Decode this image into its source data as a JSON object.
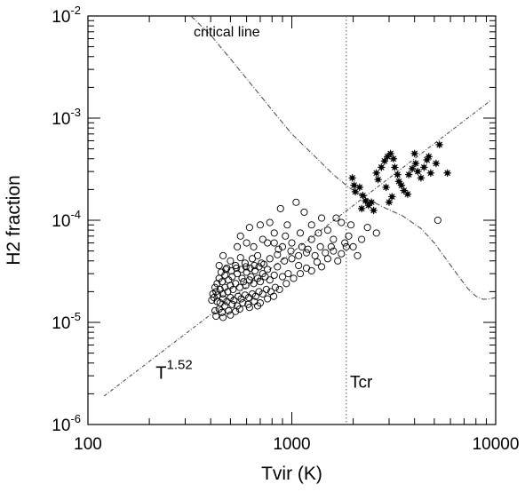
{
  "chart_data": {
    "type": "scatter",
    "x_scale": "log",
    "y_scale": "log",
    "xlabel": "Tvir (K)",
    "ylabel": "H2 fraction",
    "xlim": [
      100,
      10000
    ],
    "ylim": [
      1e-06,
      0.01
    ],
    "x_ticks": [
      {
        "value": 100,
        "label": "100"
      },
      {
        "value": 1000,
        "label": "1000"
      },
      {
        "value": 10000,
        "label": "10000"
      }
    ],
    "y_ticks": [
      {
        "value": 1e-06,
        "base": "10",
        "exp": "-6"
      },
      {
        "value": 1e-05,
        "base": "10",
        "exp": "-5"
      },
      {
        "value": 0.0001,
        "base": "10",
        "exp": "-4"
      },
      {
        "value": 0.001,
        "base": "10",
        "exp": "-3"
      },
      {
        "value": 0.01,
        "base": "10",
        "exp": "-2"
      }
    ],
    "grid": false,
    "annotations": {
      "critical_line": "critical line",
      "power_law_base": "T",
      "power_law_exp": "1.52",
      "tcr": "Tcr"
    },
    "vertical_line": {
      "x": 1850
    },
    "power_law_line": {
      "x": [
        120,
        9500
      ],
      "y": [
        1.9e-06,
        0.0015
      ]
    },
    "critical_curve": {
      "x": [
        320,
        400,
        500,
        650,
        800,
        1000,
        1300,
        1600,
        1900,
        2300,
        2800,
        3500,
        4300,
        5000,
        5800,
        6600,
        7300,
        8000,
        8700,
        9300,
        10000
      ],
      "y": [
        0.01,
        0.0065,
        0.0038,
        0.002,
        0.0012,
        0.0007,
        0.00042,
        0.00028,
        0.00021,
        0.000165,
        0.000135,
        0.00011,
        8.3e-05,
        6e-05,
        4e-05,
        2.8e-05,
        2.15e-05,
        1.8e-05,
        1.68e-05,
        1.7e-05,
        1.75e-05
      ]
    },
    "series": [
      {
        "marker": "open-circle",
        "points": [
          [
            880,
            0.00013
          ],
          [
            780,
            9.5e-05
          ],
          [
            1050,
            0.00015
          ],
          [
            1150,
            0.00012
          ],
          [
            1400,
            0.000105
          ],
          [
            1650,
            0.000105
          ],
          [
            1750,
            9.5e-05
          ],
          [
            1500,
            8e-05
          ],
          [
            1950,
            9e-05
          ],
          [
            2350,
            8.5e-05
          ],
          [
            2600,
            7.5e-05
          ],
          [
            5200,
            0.0001
          ],
          [
            1250,
            9e-05
          ],
          [
            950,
            9e-05
          ],
          [
            700,
            9e-05
          ],
          [
            620,
            8.5e-05
          ],
          [
            560,
            7e-05
          ],
          [
            540,
            5.5e-05
          ],
          [
            600,
            6e-05
          ],
          [
            650,
            5.5e-05
          ],
          [
            720,
            6.5e-05
          ],
          [
            820,
            6e-05
          ],
          [
            900,
            5.5e-05
          ],
          [
            1000,
            6e-05
          ],
          [
            1120,
            5.5e-05
          ],
          [
            1250,
            6.5e-05
          ],
          [
            1380,
            5.5e-05
          ],
          [
            1560,
            5.5e-05
          ],
          [
            1820,
            6e-05
          ],
          [
            1850,
            5.5e-05
          ],
          [
            1300,
            4.5e-05
          ],
          [
            1180,
            4.8e-05
          ],
          [
            1080,
            4.5e-05
          ],
          [
            1000,
            4.2e-05
          ],
          [
            920,
            4e-05
          ],
          [
            850,
            4.6e-05
          ],
          [
            780,
            4.2e-05
          ],
          [
            710,
            3.8e-05
          ],
          [
            680,
            4.5e-05
          ],
          [
            640,
            4.2e-05
          ],
          [
            590,
            3.8e-05
          ],
          [
            560,
            4.3e-05
          ],
          [
            530,
            3.6e-05
          ],
          [
            500,
            4e-05
          ],
          [
            480,
            3.4e-05
          ],
          [
            460,
            4.5e-05
          ],
          [
            440,
            3.6e-05
          ],
          [
            1500,
            4.2e-05
          ],
          [
            1680,
            4e-05
          ],
          [
            2100,
            4.5e-05
          ],
          [
            1080,
            3.6e-05
          ],
          [
            1400,
            3.5e-05
          ],
          [
            1250,
            3.2e-05
          ],
          [
            850,
            3.5e-05
          ],
          [
            760,
            3.3e-05
          ],
          [
            720,
            3e-05
          ],
          [
            660,
            3.2e-05
          ],
          [
            630,
            2.8e-05
          ],
          [
            600,
            3.1e-05
          ],
          [
            570,
            2.7e-05
          ],
          [
            540,
            3e-05
          ],
          [
            510,
            2.8e-05
          ],
          [
            490,
            2.6e-05
          ],
          [
            470,
            2.9e-05
          ],
          [
            455,
            2.5e-05
          ],
          [
            440,
            2.7e-05
          ],
          [
            430,
            2.4e-05
          ],
          [
            420,
            2.2e-05
          ],
          [
            960,
            3e-05
          ],
          [
            900,
            2.8e-05
          ],
          [
            820,
            2.9e-05
          ],
          [
            780,
            2.6e-05
          ],
          [
            740,
            2.8e-05
          ],
          [
            700,
            2.5e-05
          ],
          [
            680,
            2.7e-05
          ],
          [
            650,
            2.4e-05
          ],
          [
            620,
            2.6e-05
          ],
          [
            595,
            2.3e-05
          ],
          [
            580,
            2.5e-05
          ],
          [
            555,
            2.2e-05
          ],
          [
            530,
            2.4e-05
          ],
          [
            515,
            2.1e-05
          ],
          [
            500,
            2.3e-05
          ],
          [
            485,
            2e-05
          ],
          [
            470,
            2.2e-05
          ],
          [
            458,
            1.9e-05
          ],
          [
            445,
            2.1e-05
          ],
          [
            433,
            1.85e-05
          ],
          [
            425,
            2e-05
          ],
          [
            415,
            1.75e-05
          ],
          [
            410,
            1.9e-05
          ],
          [
            405,
            1.65e-05
          ],
          [
            430,
            1.6e-05
          ],
          [
            445,
            1.55e-05
          ],
          [
            460,
            1.7e-05
          ],
          [
            480,
            1.6e-05
          ],
          [
            500,
            1.75e-05
          ],
          [
            520,
            1.65e-05
          ],
          [
            545,
            1.8e-05
          ],
          [
            565,
            1.7e-05
          ],
          [
            590,
            1.85e-05
          ],
          [
            615,
            1.75e-05
          ],
          [
            640,
            1.9e-05
          ],
          [
            665,
            1.8e-05
          ],
          [
            690,
            2e-05
          ],
          [
            720,
            1.9e-05
          ],
          [
            750,
            2.1e-05
          ],
          [
            790,
            2e-05
          ],
          [
            830,
            2.2e-05
          ],
          [
            870,
            2.1e-05
          ],
          [
            470,
            1.45e-05
          ],
          [
            510,
            1.5e-05
          ],
          [
            540,
            1.45e-05
          ],
          [
            575,
            1.55e-05
          ],
          [
            610,
            1.5e-05
          ],
          [
            655,
            1.6e-05
          ],
          [
            700,
            1.55e-05
          ],
          [
            440,
            1.35e-05
          ],
          [
            420,
            1.3e-05
          ],
          [
            455,
            1.25e-05
          ],
          [
            490,
            1.3e-05
          ],
          [
            530,
            1.28e-05
          ],
          [
            425,
            1.15e-05
          ],
          [
            460,
            1.12e-05
          ],
          [
            500,
            1.18e-05
          ],
          [
            555,
            1.35e-05
          ],
          [
            620,
            1.4e-05
          ],
          [
            680,
            1.45e-05
          ],
          [
            760,
            1.7e-05
          ],
          [
            815,
            1.8e-05
          ],
          [
            940,
            2.4e-05
          ],
          [
            1020,
            2.7e-05
          ],
          [
            1100,
            3e-05
          ],
          [
            1180,
            3.4e-05
          ],
          [
            1330,
            3.9e-05
          ],
          [
            1460,
            4.8e-05
          ],
          [
            1600,
            5e-05
          ],
          [
            1750,
            4.7e-05
          ],
          [
            2000,
            5.5e-05
          ],
          [
            2200,
            6.5e-05
          ],
          [
            1900,
            7e-05
          ],
          [
            1600,
            6.5e-05
          ],
          [
            1350,
            7.5e-05
          ],
          [
            1100,
            7.5e-05
          ],
          [
            930,
            7e-05
          ],
          [
            820,
            7.5e-05
          ],
          [
            760,
            6e-05
          ],
          [
            860,
            5.2e-05
          ],
          [
            990,
            5e-05
          ],
          [
            1200,
            5.2e-05
          ],
          [
            450,
            3.1e-05
          ],
          [
            475,
            3.3e-05
          ],
          [
            505,
            3.2e-05
          ],
          [
            535,
            3.4e-05
          ],
          [
            565,
            3.3e-05
          ],
          [
            595,
            3.5e-05
          ],
          [
            625,
            3.4e-05
          ],
          [
            655,
            3.6e-05
          ],
          [
            690,
            3.5e-05
          ],
          [
            730,
            3.7e-05
          ]
        ]
      },
      {
        "marker": "filled-asterisk",
        "points": [
          [
            1980,
            0.00026
          ],
          [
            2020,
            0.00022
          ],
          [
            2050,
            0.00019
          ],
          [
            2150,
            0.00021
          ],
          [
            2230,
            0.000175
          ],
          [
            2300,
            0.000155
          ],
          [
            2380,
            0.00014
          ],
          [
            2460,
            0.00015
          ],
          [
            2520,
            0.000125
          ],
          [
            2200,
            0.00013
          ],
          [
            2600,
            0.00029
          ],
          [
            2650,
            0.00025
          ],
          [
            2750,
            0.00033
          ],
          [
            2850,
            0.00038
          ],
          [
            2950,
            0.00042
          ],
          [
            3050,
            0.00045
          ],
          [
            3150,
            0.0004
          ],
          [
            3200,
            0.00033
          ],
          [
            3300,
            0.00028
          ],
          [
            3350,
            0.00024
          ],
          [
            3450,
            0.00022
          ],
          [
            3550,
            0.000195
          ],
          [
            3100,
            0.00017
          ],
          [
            3000,
            0.00015
          ],
          [
            2900,
            0.00021
          ],
          [
            3750,
            0.00028
          ],
          [
            3900,
            0.00032
          ],
          [
            4050,
            0.00036
          ],
          [
            4150,
            0.0003
          ],
          [
            4300,
            0.00026
          ],
          [
            4450,
            0.00033
          ],
          [
            4600,
            0.00039
          ],
          [
            4800,
            0.00029
          ],
          [
            5100,
            0.00036
          ],
          [
            5300,
            0.00055
          ],
          [
            5800,
            0.00029
          ],
          [
            3700,
            0.00018
          ],
          [
            4000,
            0.00045
          ],
          [
            4700,
            0.00042
          ]
        ]
      }
    ]
  }
}
